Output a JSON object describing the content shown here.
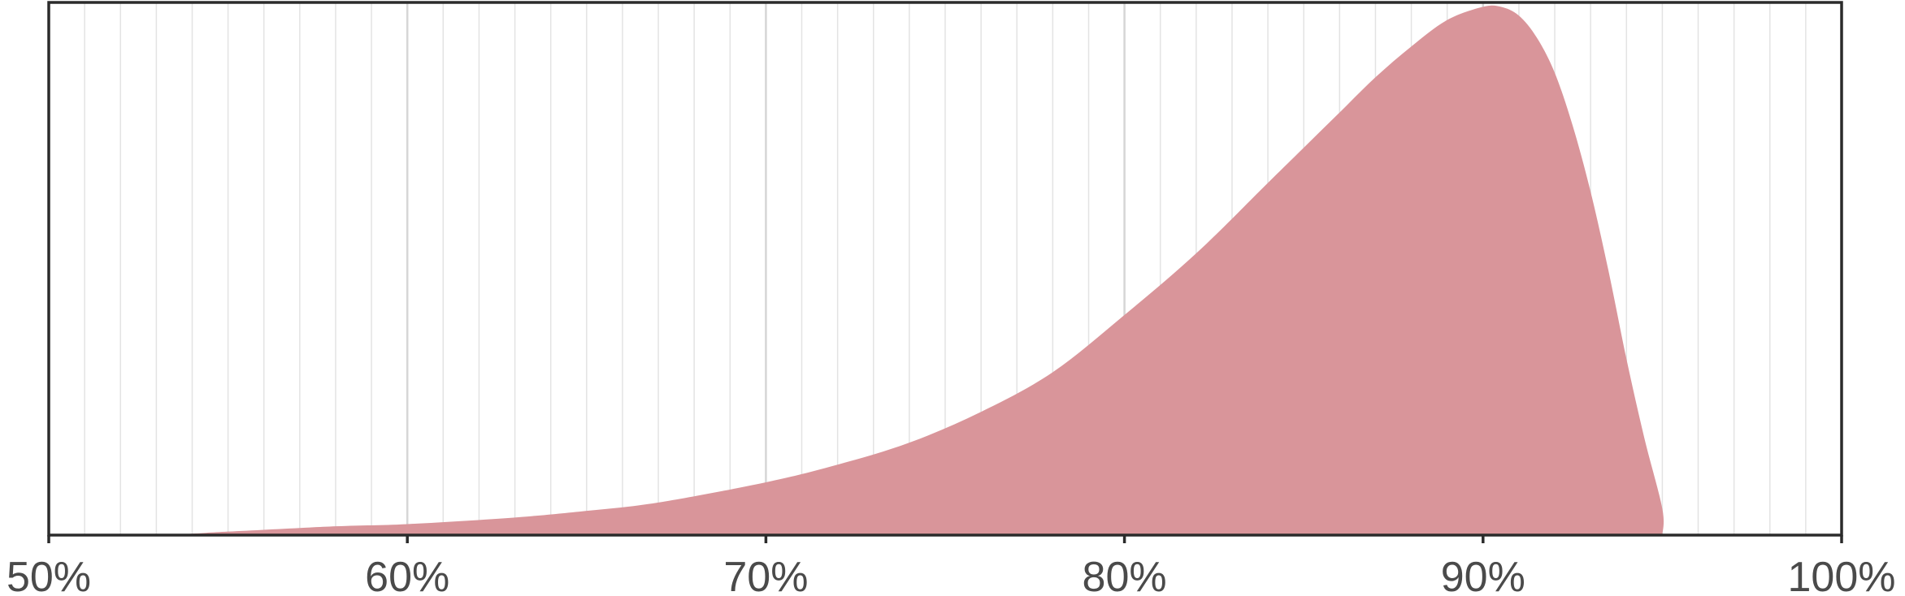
{
  "chart_data": {
    "type": "area",
    "title": "",
    "xlabel": "",
    "ylabel": "",
    "xlim": [
      50,
      100
    ],
    "ylim": [
      0,
      1.21
    ],
    "x_unit": "%",
    "x_ticks": [
      50,
      60,
      70,
      80,
      90,
      100
    ],
    "x_tick_labels": [
      "50%",
      "60%",
      "70%",
      "80%",
      "90%",
      "100%"
    ],
    "minor_grid_step": 1,
    "grid": true,
    "y_axis_shown": false,
    "fill_color": "#d9959a",
    "series": [
      {
        "x": [
          50,
          53,
          55,
          58,
          60,
          63,
          65,
          67,
          70,
          72,
          74,
          76,
          78,
          80,
          82,
          84,
          85,
          86,
          87,
          88,
          89,
          90,
          90.5,
          91,
          91.5,
          92,
          92.5,
          93,
          93.5,
          94,
          94.5,
          95,
          95
        ],
        "y": [
          0,
          0,
          0.008,
          0.02,
          0.025,
          0.04,
          0.055,
          0.074,
          0.12,
          0.16,
          0.21,
          0.28,
          0.37,
          0.5,
          0.64,
          0.8,
          0.88,
          0.96,
          1.04,
          1.11,
          1.17,
          1.2,
          1.2,
          1.18,
          1.13,
          1.05,
          0.93,
          0.78,
          0.6,
          0.4,
          0.22,
          0.06,
          0
        ]
      }
    ]
  }
}
